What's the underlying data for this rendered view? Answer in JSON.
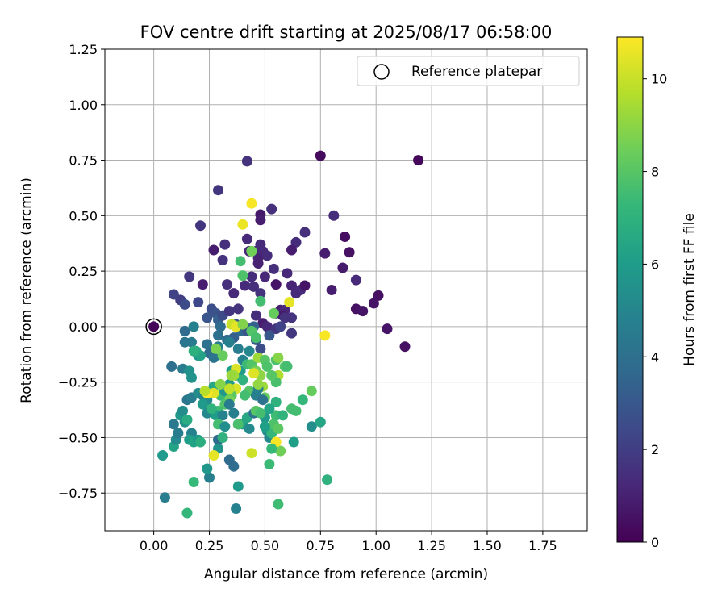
{
  "chart_data": {
    "type": "scatter",
    "title": "FOV centre drift starting at 2025/08/17 06:58:00",
    "xlabel": "Angular distance from reference (arcmin)",
    "ylabel": "Rotation from reference (arcmin)",
    "xlim": [
      -0.22,
      1.95
    ],
    "ylim": [
      -0.92,
      1.25
    ],
    "xticks": [
      "0.00",
      "0.25",
      "0.50",
      "0.75",
      "1.00",
      "1.25",
      "1.50",
      "1.75"
    ],
    "yticks": [
      "1.25",
      "1.00",
      "0.75",
      "0.50",
      "0.25",
      "0.00",
      "−0.25",
      "−0.50",
      "−0.75"
    ],
    "xtick_values": [
      0,
      0.25,
      0.5,
      0.75,
      1.0,
      1.25,
      1.5,
      1.75
    ],
    "ytick_values": [
      1.25,
      1.0,
      0.75,
      0.5,
      0.25,
      0.0,
      -0.25,
      -0.5,
      -0.75
    ],
    "grid": true,
    "legend": {
      "label": "Reference platepar",
      "position": "top-right"
    },
    "reference_point": [
      0,
      0
    ],
    "colorbar": {
      "label": "Hours from first FF file",
      "colormap": "viridis",
      "range": [
        0,
        10.9
      ],
      "ticks": [
        "0",
        "2",
        "4",
        "6",
        "8",
        "10"
      ],
      "tick_values": [
        0,
        2,
        4,
        6,
        8,
        10
      ]
    },
    "points": [
      [
        0.0,
        0.0,
        0.1
      ],
      [
        0.75,
        0.77,
        0.3
      ],
      [
        1.19,
        0.75,
        0.2
      ],
      [
        0.42,
        0.745,
        1.6
      ],
      [
        0.29,
        0.615,
        1.7
      ],
      [
        0.53,
        0.53,
        1.5
      ],
      [
        0.48,
        0.505,
        0.7
      ],
      [
        0.48,
        0.48,
        0.9
      ],
      [
        0.81,
        0.5,
        1.4
      ],
      [
        0.21,
        0.455,
        1.7
      ],
      [
        0.68,
        0.425,
        1.5
      ],
      [
        0.86,
        0.405,
        0.4
      ],
      [
        0.64,
        0.38,
        1.4
      ],
      [
        0.42,
        0.395,
        1.3
      ],
      [
        0.32,
        0.37,
        1.5
      ],
      [
        0.48,
        0.37,
        1.3
      ],
      [
        0.27,
        0.345,
        0.9
      ],
      [
        0.77,
        0.33,
        0.9
      ],
      [
        0.88,
        0.335,
        0.5
      ],
      [
        0.31,
        0.3,
        1.6
      ],
      [
        0.46,
        0.34,
        1.5
      ],
      [
        0.43,
        0.34,
        1.2
      ],
      [
        0.49,
        0.34,
        1.3
      ],
      [
        0.51,
        0.32,
        1.4
      ],
      [
        0.47,
        0.31,
        1.1
      ],
      [
        0.47,
        0.285,
        1.0
      ],
      [
        0.62,
        0.345,
        0.9
      ],
      [
        0.54,
        0.26,
        1.5
      ],
      [
        0.85,
        0.265,
        0.8
      ],
      [
        0.6,
        0.24,
        1.2
      ],
      [
        0.16,
        0.225,
        1.8
      ],
      [
        0.44,
        0.225,
        1.4
      ],
      [
        0.5,
        0.225,
        1.2
      ],
      [
        0.91,
        0.21,
        1.3
      ],
      [
        0.22,
        0.19,
        0.9
      ],
      [
        0.33,
        0.19,
        1.5
      ],
      [
        0.41,
        0.185,
        1.3
      ],
      [
        0.45,
        0.18,
        1.5
      ],
      [
        0.55,
        0.19,
        0.6
      ],
      [
        0.62,
        0.185,
        1.1
      ],
      [
        0.66,
        0.165,
        1.3
      ],
      [
        0.68,
        0.185,
        0.6
      ],
      [
        0.8,
        0.165,
        0.9
      ],
      [
        0.36,
        0.15,
        1.2
      ],
      [
        0.48,
        0.15,
        1.6
      ],
      [
        1.01,
        0.14,
        0.5
      ],
      [
        0.09,
        0.145,
        2.2
      ],
      [
        0.12,
        0.12,
        2.0
      ],
      [
        0.14,
        0.1,
        2.5
      ],
      [
        0.2,
        0.11,
        2.4
      ],
      [
        0.99,
        0.105,
        0.6
      ],
      [
        0.91,
        0.08,
        0.5
      ],
      [
        0.94,
        0.07,
        0.6
      ],
      [
        0.57,
        0.075,
        0.9
      ],
      [
        0.59,
        0.075,
        1.2
      ],
      [
        0.55,
        0.06,
        1.3
      ],
      [
        0.58,
        0.05,
        0.8
      ],
      [
        0.26,
        0.08,
        2.6
      ],
      [
        0.28,
        0.06,
        2.8
      ],
      [
        0.24,
        0.04,
        2.9
      ],
      [
        0.29,
        0.03,
        3.3
      ],
      [
        0.31,
        0.05,
        2.5
      ],
      [
        0.34,
        0.07,
        1.7
      ],
      [
        0.38,
        0.08,
        1.6
      ],
      [
        0.46,
        0.05,
        1.4
      ],
      [
        0.49,
        0.015,
        0.9
      ],
      [
        0.51,
        0.0,
        1.2
      ],
      [
        0.59,
        0.04,
        1.6
      ],
      [
        0.62,
        -0.03,
        1.8
      ],
      [
        1.05,
        -0.01,
        0.6
      ],
      [
        1.13,
        -0.09,
        0.5
      ],
      [
        0.55,
        -0.01,
        1.7
      ],
      [
        0.57,
        0.0,
        2.2
      ],
      [
        0.62,
        0.04,
        1.6
      ],
      [
        0.64,
        0.15,
        1.3
      ],
      [
        0.37,
        0.01,
        3.1
      ],
      [
        0.39,
        -0.02,
        3.7
      ],
      [
        0.41,
        0.0,
        3.3
      ],
      [
        0.42,
        -0.02,
        2.9
      ],
      [
        0.3,
        0.0,
        3.8
      ],
      [
        0.29,
        -0.04,
        4.0
      ],
      [
        0.33,
        -0.06,
        3.8
      ],
      [
        0.36,
        -0.05,
        3.3
      ],
      [
        0.45,
        0.0,
        3.4
      ],
      [
        0.46,
        -0.06,
        3.1
      ],
      [
        0.48,
        -0.1,
        2.6
      ],
      [
        0.52,
        -0.04,
        3.0
      ],
      [
        0.14,
        -0.02,
        3.8
      ],
      [
        0.18,
        0.0,
        4.8
      ],
      [
        0.17,
        -0.07,
        4.5
      ],
      [
        0.14,
        -0.07,
        4.3
      ],
      [
        0.24,
        -0.08,
        4.1
      ],
      [
        0.25,
        -0.12,
        3.8
      ],
      [
        0.27,
        -0.14,
        4.2
      ],
      [
        0.29,
        -0.09,
        4.6
      ],
      [
        0.34,
        -0.07,
        4.7
      ],
      [
        0.38,
        -0.1,
        4.6
      ],
      [
        0.43,
        -0.11,
        5.0
      ],
      [
        0.4,
        -0.15,
        4.8
      ],
      [
        0.08,
        -0.18,
        4.0
      ],
      [
        0.13,
        -0.19,
        4.5
      ],
      [
        0.16,
        -0.2,
        5.5
      ],
      [
        0.17,
        -0.23,
        5.6
      ],
      [
        0.2,
        -0.13,
        5.7
      ],
      [
        0.21,
        -0.13,
        6.2
      ],
      [
        0.19,
        -0.11,
        6.6
      ],
      [
        0.18,
        -0.11,
        6.9
      ],
      [
        0.15,
        -0.33,
        4.3
      ],
      [
        0.17,
        -0.32,
        4.5
      ],
      [
        0.2,
        -0.3,
        5.3
      ],
      [
        0.22,
        -0.31,
        5.0
      ],
      [
        0.24,
        -0.33,
        5.2
      ],
      [
        0.26,
        -0.3,
        6.2
      ],
      [
        0.27,
        -0.27,
        6.5
      ],
      [
        0.3,
        -0.31,
        7.3
      ],
      [
        0.32,
        -0.29,
        5.7
      ],
      [
        0.34,
        -0.26,
        5.8
      ],
      [
        0.35,
        -0.2,
        6.1
      ],
      [
        0.37,
        -0.22,
        6.3
      ],
      [
        0.39,
        -0.2,
        5.9
      ],
      [
        0.4,
        -0.24,
        7.0
      ],
      [
        0.42,
        -0.17,
        7.4
      ],
      [
        0.44,
        -0.17,
        7.9
      ],
      [
        0.46,
        -0.2,
        8.6
      ],
      [
        0.48,
        -0.22,
        9.0
      ],
      [
        0.47,
        -0.14,
        9.3
      ],
      [
        0.5,
        -0.15,
        8.0
      ],
      [
        0.51,
        -0.18,
        7.8
      ],
      [
        0.55,
        -0.15,
        7.8
      ],
      [
        0.56,
        -0.22,
        9.6
      ],
      [
        0.59,
        -0.18,
        7.9
      ],
      [
        0.55,
        -0.25,
        7.7
      ],
      [
        0.49,
        -0.27,
        9.3
      ],
      [
        0.5,
        -0.32,
        8.3
      ],
      [
        0.43,
        -0.29,
        8.0
      ],
      [
        0.41,
        -0.31,
        7.6
      ],
      [
        0.37,
        -0.28,
        10.3
      ],
      [
        0.37,
        -0.19,
        10.3
      ],
      [
        0.36,
        -0.22,
        9.4
      ],
      [
        0.35,
        -0.31,
        8.1
      ],
      [
        0.34,
        -0.33,
        8.6
      ],
      [
        0.32,
        -0.35,
        7.9
      ],
      [
        0.29,
        -0.38,
        7.5
      ],
      [
        0.27,
        -0.3,
        10.4
      ],
      [
        0.24,
        -0.3,
        10.9
      ],
      [
        0.23,
        -0.29,
        9.7
      ],
      [
        0.22,
        -0.35,
        5.9
      ],
      [
        0.24,
        -0.39,
        5.1
      ],
      [
        0.28,
        -0.4,
        6.0
      ],
      [
        0.31,
        -0.4,
        4.9
      ],
      [
        0.34,
        -0.35,
        4.5
      ],
      [
        0.36,
        -0.39,
        4.7
      ],
      [
        0.38,
        -0.44,
        4.1
      ],
      [
        0.4,
        -0.44,
        6.1
      ],
      [
        0.42,
        -0.41,
        6.5
      ],
      [
        0.43,
        -0.46,
        5.2
      ],
      [
        0.45,
        -0.39,
        4.1
      ],
      [
        0.46,
        -0.31,
        4.7
      ],
      [
        0.47,
        -0.28,
        4.8
      ],
      [
        0.49,
        -0.33,
        4.1
      ],
      [
        0.5,
        -0.41,
        5.8
      ],
      [
        0.51,
        -0.47,
        5.3
      ],
      [
        0.52,
        -0.5,
        5.1
      ],
      [
        0.53,
        -0.48,
        7.2
      ],
      [
        0.54,
        -0.44,
        7.8
      ],
      [
        0.56,
        -0.46,
        8.1
      ],
      [
        0.57,
        -0.56,
        8.5
      ],
      [
        0.55,
        -0.52,
        10.8
      ],
      [
        0.53,
        -0.55,
        7.3
      ],
      [
        0.55,
        -0.4,
        7.5
      ],
      [
        0.58,
        -0.4,
        7.1
      ],
      [
        0.55,
        -0.34,
        7.0
      ],
      [
        0.62,
        -0.37,
        7.6
      ],
      [
        0.64,
        -0.38,
        7.6
      ],
      [
        0.67,
        -0.33,
        7.2
      ],
      [
        0.71,
        -0.29,
        8.3
      ],
      [
        0.63,
        -0.52,
        6.1
      ],
      [
        0.71,
        -0.45,
        5.4
      ],
      [
        0.75,
        -0.43,
        6.4
      ],
      [
        0.78,
        -0.69,
        7.0
      ],
      [
        0.56,
        -0.8,
        7.5
      ],
      [
        0.52,
        -0.62,
        7.4
      ],
      [
        0.44,
        -0.57,
        10.1
      ],
      [
        0.38,
        -0.72,
        5.9
      ],
      [
        0.37,
        -0.82,
        4.8
      ],
      [
        0.36,
        -0.63,
        3.9
      ],
      [
        0.34,
        -0.6,
        3.8
      ],
      [
        0.29,
        -0.51,
        3.8
      ],
      [
        0.29,
        -0.55,
        5.6
      ],
      [
        0.27,
        -0.58,
        10.5
      ],
      [
        0.25,
        -0.68,
        4.7
      ],
      [
        0.24,
        -0.64,
        5.7
      ],
      [
        0.18,
        -0.7,
        7.3
      ],
      [
        0.15,
        -0.84,
        7.2
      ],
      [
        0.05,
        -0.77,
        4.6
      ],
      [
        0.04,
        -0.58,
        5.9
      ],
      [
        0.09,
        -0.54,
        6.3
      ],
      [
        0.1,
        -0.51,
        5.2
      ],
      [
        0.11,
        -0.48,
        4.5
      ],
      [
        0.09,
        -0.44,
        4.4
      ],
      [
        0.12,
        -0.4,
        5.8
      ],
      [
        0.13,
        -0.38,
        5.3
      ],
      [
        0.14,
        -0.43,
        5.5
      ],
      [
        0.15,
        -0.42,
        6.7
      ],
      [
        0.17,
        -0.48,
        4.8
      ],
      [
        0.16,
        -0.51,
        6.0
      ],
      [
        0.18,
        -0.52,
        6.3
      ],
      [
        0.2,
        -0.51,
        5.8
      ],
      [
        0.21,
        -0.52,
        6.8
      ],
      [
        0.26,
        -0.37,
        7.0
      ],
      [
        0.29,
        -0.44,
        7.6
      ],
      [
        0.31,
        -0.5,
        7.0
      ],
      [
        0.32,
        -0.45,
        5.4
      ],
      [
        0.38,
        -0.44,
        7.7
      ],
      [
        0.46,
        -0.38,
        8.0
      ],
      [
        0.48,
        -0.39,
        7.6
      ],
      [
        0.5,
        -0.45,
        6.1
      ],
      [
        0.52,
        -0.37,
        6.4
      ],
      [
        0.56,
        -0.14,
        8.9
      ],
      [
        0.61,
        0.11,
        10.5
      ],
      [
        0.77,
        -0.04,
        10.8
      ],
      [
        0.35,
        0.01,
        10.0
      ],
      [
        0.37,
        0.0,
        10.5
      ],
      [
        0.4,
        0.01,
        8.8
      ],
      [
        0.44,
        -0.02,
        7.9
      ],
      [
        0.46,
        -0.05,
        7.7
      ],
      [
        0.48,
        0.115,
        7.6
      ],
      [
        0.54,
        0.06,
        8.3
      ],
      [
        0.4,
        0.46,
        10.6
      ],
      [
        0.44,
        0.555,
        10.8
      ],
      [
        0.44,
        0.34,
        8.5
      ],
      [
        0.39,
        0.295,
        7.6
      ],
      [
        0.4,
        0.23,
        7.8
      ],
      [
        0.31,
        -0.13,
        8.3
      ],
      [
        0.28,
        -0.1,
        8.7
      ],
      [
        0.47,
        -0.26,
        9.1
      ],
      [
        0.45,
        -0.21,
        10.4
      ],
      [
        0.53,
        -0.22,
        8.0
      ],
      [
        0.6,
        -0.18,
        7.6
      ],
      [
        0.35,
        -0.22,
        9.2
      ],
      [
        0.34,
        -0.28,
        9.9
      ],
      [
        0.3,
        -0.26,
        8.9
      ]
    ]
  }
}
